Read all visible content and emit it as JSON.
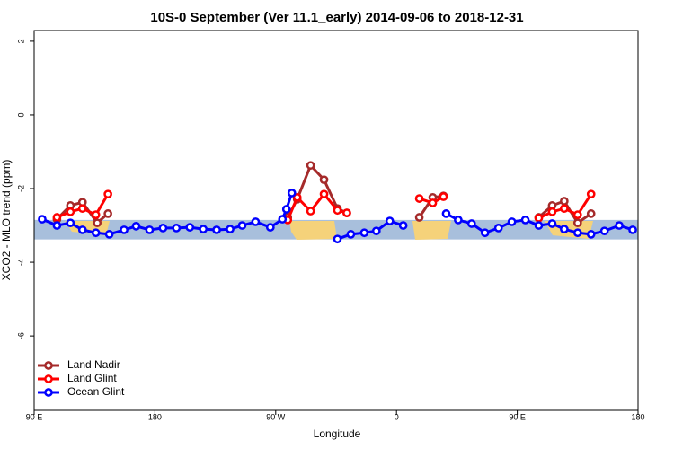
{
  "chart_data": {
    "type": "line",
    "title": "10S-0 September (Ver 11.1_early)   2014-09-06 to 2018-12-31",
    "x_label": "Longitude",
    "y_label": "XCO2 - MLO trend (ppm)",
    "xlim": [
      90,
      540
    ],
    "ylim": [
      -8.02,
      2.29
    ],
    "xticks": [
      {
        "value": 90,
        "label": "90 E"
      },
      {
        "value": 180,
        "label": "180"
      },
      {
        "value": 270,
        "label": "90 W"
      },
      {
        "value": 360,
        "label": "0"
      },
      {
        "value": 450,
        "label": "90 E"
      },
      {
        "value": 540,
        "label": "180"
      }
    ],
    "yticks": [
      2,
      0,
      -2,
      -4,
      -6
    ],
    "shaded_band": [
      -3.38,
      -2.85
    ],
    "legend": "bottom-left",
    "series": [
      {
        "name": "Land Nadir",
        "color": "#a52a2a",
        "x": [
          107,
          117,
          126,
          137,
          145,
          null,
          279,
          286,
          296,
          306,
          316,
          323,
          null,
          377,
          387,
          395,
          null,
          466,
          476,
          485,
          495,
          505
        ],
        "values": [
          -2.83,
          -2.46,
          -2.37,
          -2.93,
          -2.68,
          null,
          -2.78,
          -2.29,
          -1.37,
          -1.76,
          -2.54,
          -2.66,
          null,
          -2.78,
          -2.24,
          -2.2,
          null,
          -2.78,
          -2.46,
          -2.34,
          -2.93,
          -2.68
        ]
      },
      {
        "name": "Land Glint",
        "color": "#ff0000",
        "x": [
          107,
          117,
          126,
          136,
          145,
          null,
          279,
          286,
          296,
          306,
          316,
          323,
          null,
          377,
          387,
          395,
          null,
          466,
          476,
          485,
          495,
          505
        ],
        "values": [
          -2.78,
          -2.63,
          -2.54,
          -2.71,
          -2.15,
          null,
          -2.85,
          -2.24,
          -2.61,
          -2.15,
          -2.59,
          -2.66,
          null,
          -2.27,
          -2.39,
          -2.22,
          null,
          -2.8,
          -2.63,
          -2.54,
          -2.71,
          -2.15
        ]
      },
      {
        "name": "Ocean Glint",
        "color": "#0000ff",
        "x": [
          96,
          107,
          117,
          126,
          136,
          146,
          157,
          166,
          176,
          186,
          196,
          206,
          216,
          226,
          236,
          245,
          255,
          266,
          275,
          278,
          282,
          null,
          316,
          326,
          336,
          345,
          355,
          365,
          null,
          397,
          406,
          416,
          426,
          436,
          446,
          456,
          466,
          476,
          485,
          495,
          505,
          515,
          526,
          536
        ],
        "values": [
          -2.83,
          -3.0,
          -2.93,
          -3.12,
          -3.2,
          -3.24,
          -3.12,
          -3.02,
          -3.12,
          -3.07,
          -3.07,
          -3.05,
          -3.1,
          -3.12,
          -3.1,
          -3.0,
          -2.9,
          -3.05,
          -2.83,
          -2.56,
          -2.12,
          null,
          -3.37,
          -3.24,
          -3.2,
          -3.15,
          -2.88,
          -3.0,
          null,
          -2.68,
          -2.85,
          -2.95,
          -3.2,
          -3.07,
          -2.9,
          -2.85,
          -3.0,
          -2.95,
          -3.1,
          -3.2,
          -3.24,
          -3.15,
          -3.0,
          -3.12
        ]
      }
    ]
  }
}
